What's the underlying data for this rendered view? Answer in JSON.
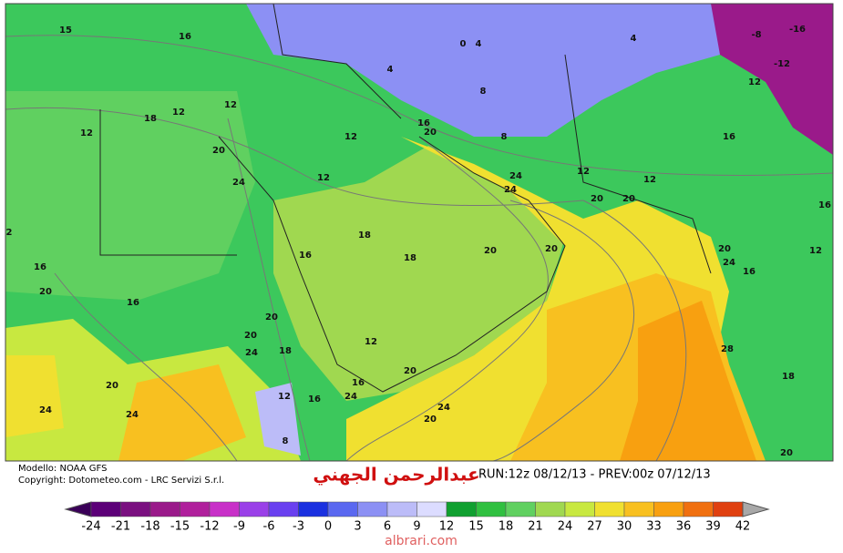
{
  "map": {
    "labels": [
      "15",
      "16",
      "18",
      "12",
      "12",
      "12",
      "20",
      "24",
      "12",
      "12",
      "4",
      "8",
      "0",
      "4",
      "8",
      "12",
      "12",
      "4",
      "-8",
      "-16",
      "-12",
      "12",
      "16",
      "16",
      "20",
      "24",
      "24",
      "20",
      "20",
      "18",
      "18",
      "20",
      "20",
      "20",
      "24",
      "12",
      "16",
      "16",
      "20",
      "16",
      "16",
      "20",
      "20",
      "24",
      "18",
      "12",
      "28",
      "18",
      "16",
      "20",
      "24",
      "24",
      "20",
      "20",
      "24",
      "24",
      "12",
      "16",
      "8",
      "20",
      "16",
      "2"
    ]
  },
  "footer": {
    "model": "Modello: NOAA GFS",
    "copyright": "Copyright: Dotometeo.com - LRC Servizi S.r.l.",
    "author": "عبدالرحمن الجهني",
    "run": "RUN:12z 08/12/13 - PREV:00z 07/12/13",
    "watermark": "albrari.com"
  },
  "scale": {
    "ticks": [
      -24,
      -21,
      -18,
      -15,
      -12,
      -9,
      -6,
      -3,
      0,
      3,
      6,
      9,
      12,
      15,
      18,
      21,
      24,
      27,
      30,
      33,
      36,
      39,
      42
    ],
    "colors": [
      "#3a0058",
      "#5c0078",
      "#7a1080",
      "#9a1a8a",
      "#b0209c",
      "#c830c8",
      "#9a40e8",
      "#6a40f0",
      "#1a30e0",
      "#5a68f0",
      "#8c90f4",
      "#bcbcf8",
      "#dcdcff",
      "#10a030",
      "#30c040",
      "#60d060",
      "#a0d850",
      "#c8e840",
      "#f0e030",
      "#f8c020",
      "#f8a010",
      "#f07010",
      "#e04010",
      "#c81010",
      "#a8a8a8"
    ]
  }
}
